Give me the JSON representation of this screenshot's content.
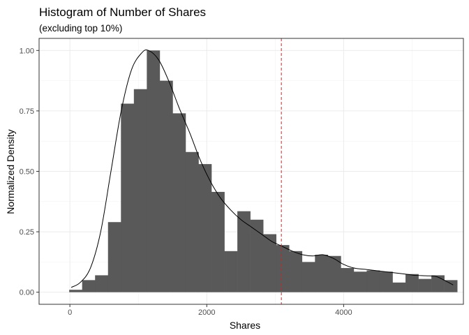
{
  "chart_data": {
    "type": "bar",
    "title": "Histogram of Number of Shares",
    "subtitle": "(excluding top 10%)",
    "xlabel": "Shares",
    "ylabel": "Normalized Density",
    "xlim": [
      -450,
      5750
    ],
    "ylim": [
      -0.05,
      1.05
    ],
    "x_ticks": [
      0,
      2000,
      4000
    ],
    "x_tick_labels": [
      "0",
      "2000",
      "4000"
    ],
    "y_ticks": [
      0,
      0.25,
      0.5,
      0.75,
      1
    ],
    "y_tick_labels": [
      "0.00",
      "0.25",
      "0.50",
      "0.75",
      "1.00"
    ],
    "grid": true,
    "bin_width": 189,
    "bins": [
      {
        "x": -10,
        "y": 0.01
      },
      {
        "x": 179,
        "y": 0.05
      },
      {
        "x": 368,
        "y": 0.07
      },
      {
        "x": 557,
        "y": 0.29
      },
      {
        "x": 746,
        "y": 0.78
      },
      {
        "x": 935,
        "y": 0.84
      },
      {
        "x": 1124,
        "y": 1.0
      },
      {
        "x": 1313,
        "y": 0.875
      },
      {
        "x": 1502,
        "y": 0.74
      },
      {
        "x": 1691,
        "y": 0.58
      },
      {
        "x": 1880,
        "y": 0.53
      },
      {
        "x": 2069,
        "y": 0.415
      },
      {
        "x": 2258,
        "y": 0.17
      },
      {
        "x": 2447,
        "y": 0.335
      },
      {
        "x": 2636,
        "y": 0.3
      },
      {
        "x": 2825,
        "y": 0.24
      },
      {
        "x": 3014,
        "y": 0.195
      },
      {
        "x": 3203,
        "y": 0.17
      },
      {
        "x": 3392,
        "y": 0.125
      },
      {
        "x": 3581,
        "y": 0.155
      },
      {
        "x": 3770,
        "y": 0.15
      },
      {
        "x": 3959,
        "y": 0.1
      },
      {
        "x": 4148,
        "y": 0.085
      },
      {
        "x": 4337,
        "y": 0.09
      },
      {
        "x": 4526,
        "y": 0.085
      },
      {
        "x": 4715,
        "y": 0.04
      },
      {
        "x": 4904,
        "y": 0.075
      },
      {
        "x": 5093,
        "y": 0.055
      },
      {
        "x": 5282,
        "y": 0.07
      },
      {
        "x": 5471,
        "y": 0.05
      }
    ],
    "density_curve": [
      [
        20,
        0.02
      ],
      [
        150,
        0.04
      ],
      [
        300,
        0.1
      ],
      [
        450,
        0.25
      ],
      [
        600,
        0.5
      ],
      [
        750,
        0.75
      ],
      [
        900,
        0.92
      ],
      [
        1050,
        0.99
      ],
      [
        1150,
        1.0
      ],
      [
        1300,
        0.96
      ],
      [
        1450,
        0.87
      ],
      [
        1600,
        0.76
      ],
      [
        1750,
        0.66
      ],
      [
        1900,
        0.55
      ],
      [
        2050,
        0.46
      ],
      [
        2200,
        0.39
      ],
      [
        2350,
        0.34
      ],
      [
        2500,
        0.3
      ],
      [
        2650,
        0.27
      ],
      [
        2800,
        0.24
      ],
      [
        2950,
        0.21
      ],
      [
        3100,
        0.19
      ],
      [
        3250,
        0.17
      ],
      [
        3400,
        0.155
      ],
      [
        3550,
        0.15
      ],
      [
        3700,
        0.155
      ],
      [
        3850,
        0.14
      ],
      [
        4000,
        0.115
      ],
      [
        4150,
        0.1
      ],
      [
        4300,
        0.095
      ],
      [
        4450,
        0.09
      ],
      [
        4600,
        0.085
      ],
      [
        4750,
        0.08
      ],
      [
        4900,
        0.075
      ],
      [
        5050,
        0.07
      ],
      [
        5200,
        0.068
      ],
      [
        5350,
        0.065
      ],
      [
        5500,
        0.045
      ],
      [
        5600,
        0.03
      ]
    ],
    "vline": {
      "x": 3090,
      "color": "#e41a1c",
      "style": "dashed"
    },
    "bar_color": "#595959"
  }
}
